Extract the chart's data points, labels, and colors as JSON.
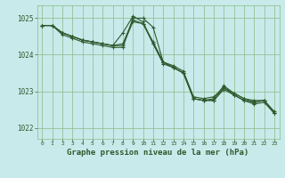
{
  "background_color": "#c8eaea",
  "plot_bg_color": "#c8eaea",
  "grid_color": "#88bb88",
  "line_color": "#2d5a2d",
  "xlabel": "Graphe pression niveau de la mer (hPa)",
  "xlabel_fontsize": 6.5,
  "ylim": [
    1021.7,
    1025.35
  ],
  "xlim": [
    -0.5,
    23.5
  ],
  "yticks": [
    1022,
    1023,
    1024,
    1025
  ],
  "xticks": [
    0,
    1,
    2,
    3,
    4,
    5,
    6,
    7,
    8,
    9,
    10,
    11,
    12,
    13,
    14,
    15,
    16,
    17,
    18,
    19,
    20,
    21,
    22,
    23
  ],
  "series": [
    [
      1024.8,
      1024.8,
      1024.55,
      1024.45,
      1024.35,
      1024.3,
      1024.25,
      1024.2,
      1024.2,
      1025.0,
      1025.0,
      1024.75,
      1023.8,
      1023.65,
      1023.5,
      1022.8,
      1022.75,
      1022.75,
      1023.05,
      1022.9,
      1022.75,
      1022.7,
      1022.75,
      1022.4
    ],
    [
      1024.8,
      1024.8,
      1024.6,
      1024.5,
      1024.4,
      1024.35,
      1024.3,
      1024.25,
      1024.6,
      1025.05,
      1024.9,
      1024.3,
      1023.75,
      1023.65,
      1023.5,
      1022.8,
      1022.75,
      1022.75,
      1023.1,
      1022.9,
      1022.75,
      1022.65,
      1022.7,
      1022.4
    ],
    [
      1024.8,
      1024.8,
      1024.6,
      1024.5,
      1024.4,
      1024.35,
      1024.3,
      1024.25,
      1024.3,
      1024.95,
      1024.85,
      1024.3,
      1023.8,
      1023.65,
      1023.5,
      1022.8,
      1022.75,
      1022.8,
      1023.15,
      1022.95,
      1022.8,
      1022.75,
      1022.75,
      1022.45
    ],
    [
      1024.8,
      1024.8,
      1024.6,
      1024.5,
      1024.4,
      1024.35,
      1024.3,
      1024.25,
      1024.25,
      1024.9,
      1024.85,
      1024.35,
      1023.8,
      1023.7,
      1023.55,
      1022.85,
      1022.8,
      1022.85,
      1023.1,
      1022.95,
      1022.8,
      1022.7,
      1022.75,
      1022.4
    ]
  ]
}
